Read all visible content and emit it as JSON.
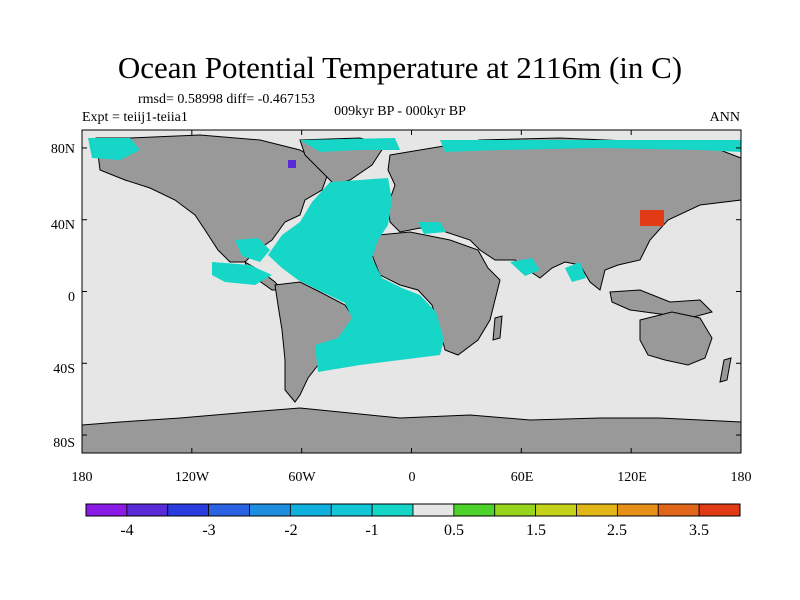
{
  "chart_data": {
    "type": "heatmap",
    "title": "Ocean Potential Temperature at 2116m (in C)",
    "stats_line": "rmsd= 0.58998 diff= -0.467153",
    "experiment_line": "Expt = teiij1-teiia1",
    "period_line": "009kyr BP - 000kyr BP",
    "season": "ANN",
    "x_ticks": [
      "180",
      "120W",
      "60W",
      "0",
      "60E",
      "120E",
      "180"
    ],
    "y_ticks": [
      "80N",
      "40N",
      "0",
      "40S",
      "80S"
    ],
    "xlim": [
      -180,
      180
    ],
    "ylim": [
      -90,
      90
    ],
    "colorbar": {
      "colors": [
        "#8a1ae6",
        "#5a2ad8",
        "#2a3ce0",
        "#2a62e2",
        "#1e8ee0",
        "#10b0de",
        "#12c6d8",
        "#16d6c8",
        "#e6e6e6",
        "#4cd22a",
        "#96d41e",
        "#c4d21c",
        "#e2b618",
        "#e6901a",
        "#e2661a",
        "#e23a14"
      ],
      "tick_labels": [
        "-4",
        "-3",
        "-2",
        "-1",
        "0.5",
        "1.5",
        "2.5",
        "3.5"
      ]
    },
    "land_color": "#999999",
    "near_zero_color": "#e6e6e6",
    "regions": [
      {
        "name": "Atlantic basin",
        "anomaly_class": "-1.0 to -0.5"
      },
      {
        "name": "Arctic margin",
        "anomaly_class": "-1.0 to -0.5"
      },
      {
        "name": "East Asia marginal sea",
        "anomaly_class": "3.5 and above"
      },
      {
        "name": "Baffin Bay",
        "anomaly_class": "-3.5 to -4"
      },
      {
        "name": "Pacific, Indian and Southern oceans",
        "anomaly_class": "-0.5 to 0.5"
      }
    ]
  }
}
